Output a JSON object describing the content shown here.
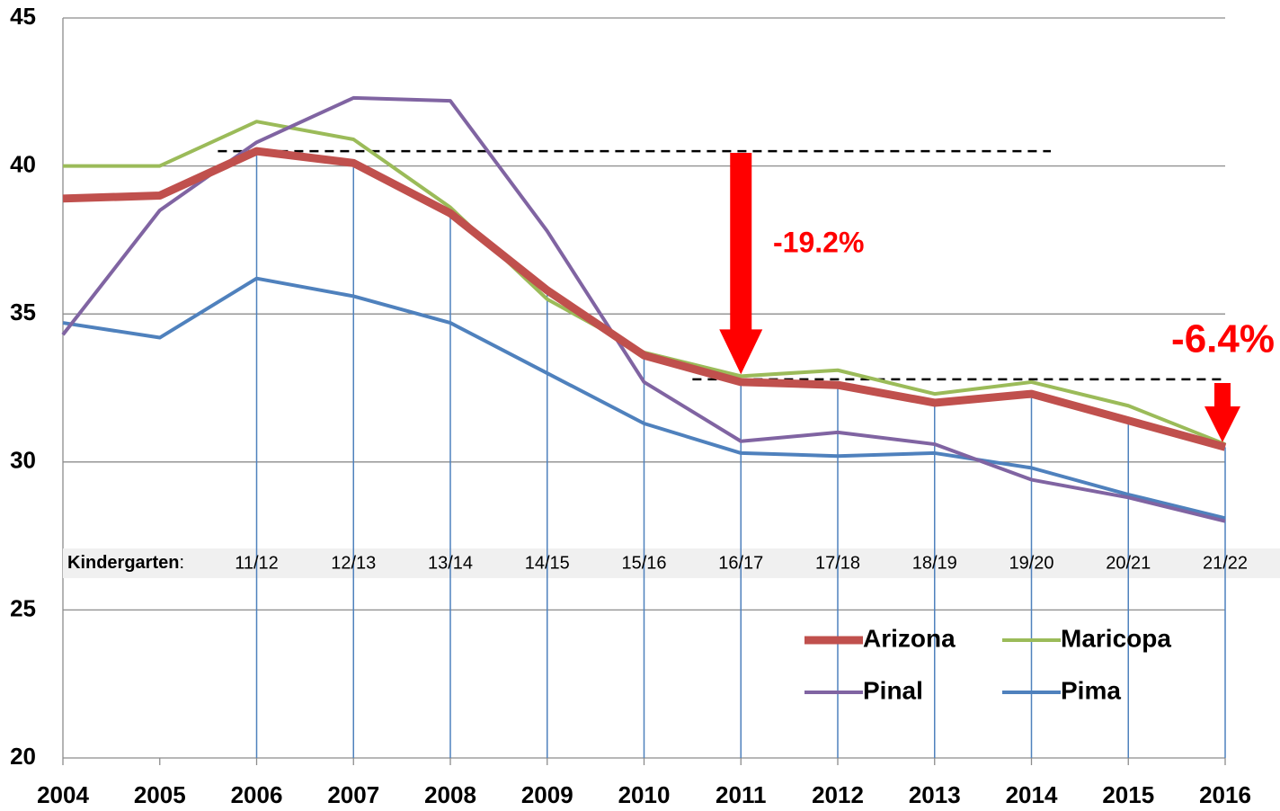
{
  "chart_data": {
    "type": "line",
    "x": [
      2004,
      2005,
      2006,
      2007,
      2008,
      2009,
      2010,
      2011,
      2012,
      2013,
      2014,
      2015,
      2016
    ],
    "xlim": [
      2004,
      2016
    ],
    "xticks": [
      2004,
      2005,
      2006,
      2007,
      2008,
      2009,
      2010,
      2011,
      2012,
      2013,
      2014,
      2015,
      2016
    ],
    "ylim": [
      20,
      45
    ],
    "yticks": [
      20,
      25,
      30,
      35,
      40,
      45
    ],
    "grid": true,
    "series": [
      {
        "name": "Arizona",
        "color": "#c0504d",
        "values": [
          38.9,
          39.0,
          40.5,
          40.1,
          38.4,
          35.8,
          33.6,
          32.7,
          32.6,
          32.0,
          32.3,
          31.4,
          30.5
        ]
      },
      {
        "name": "Maricopa",
        "color": "#9bbb59",
        "values": [
          40.0,
          40.0,
          41.5,
          40.9,
          38.6,
          35.5,
          33.7,
          32.9,
          33.1,
          32.3,
          32.7,
          31.9,
          30.6
        ]
      },
      {
        "name": "Pinal",
        "color": "#8064a2",
        "values": [
          34.3,
          38.5,
          40.8,
          42.3,
          42.2,
          37.8,
          32.7,
          30.7,
          31.0,
          30.6,
          29.4,
          28.8,
          28.0
        ]
      },
      {
        "name": "Pima",
        "color": "#4f81bd",
        "values": [
          34.7,
          34.2,
          36.2,
          35.6,
          34.7,
          33.0,
          31.3,
          30.3,
          30.2,
          30.3,
          29.8,
          28.9,
          28.1
        ]
      }
    ],
    "annotations": [
      "-19.2%",
      "-6.4%"
    ],
    "kindergarten": {
      "label": "Kindergarten",
      "separator": ":",
      "years": [
        "11/12",
        "12/13",
        "13/14",
        "14/15",
        "15/16",
        "16/17",
        "17/18",
        "18/19",
        "19/20",
        "20/21",
        "21/22"
      ]
    }
  }
}
